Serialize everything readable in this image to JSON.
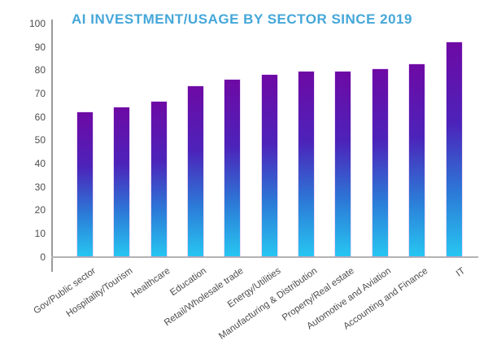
{
  "chart_data": {
    "type": "bar",
    "title": "AI INVESTMENT/USAGE BY SECTOR SINCE 2019",
    "xlabel": "",
    "ylabel": "",
    "categories": [
      "Gov/Public sector",
      "Hospitality/Tourism",
      "Healthcare",
      "Education",
      "Retail/Wholesale trade",
      "Energy/Utilities",
      "Manufacturing & Distribution",
      "Property/Real estate",
      "Automotive and Aviation",
      "Accounting and Finance",
      "IT"
    ],
    "values": [
      62,
      64,
      66.5,
      73,
      76,
      78,
      79.5,
      79.5,
      80.5,
      82.5,
      92
    ],
    "ylim": [
      0,
      100
    ],
    "yticks": [
      0,
      10,
      20,
      30,
      40,
      50,
      60,
      70,
      80,
      90,
      100
    ],
    "grid": false,
    "legend": "none",
    "colors": {
      "title": "#45a7d9",
      "axis_line": "#9b9b9b",
      "baseline": "#b3b3b3",
      "tick_label": "#4d4d4f",
      "category_label": "#4d4d4f",
      "bar_gradient_top": "#6e09a4",
      "bar_gradient_upper_mid": "#4c23ba",
      "bar_gradient_lower_mid": "#2c79d7",
      "bar_gradient_bottom": "#27c6f1"
    }
  }
}
